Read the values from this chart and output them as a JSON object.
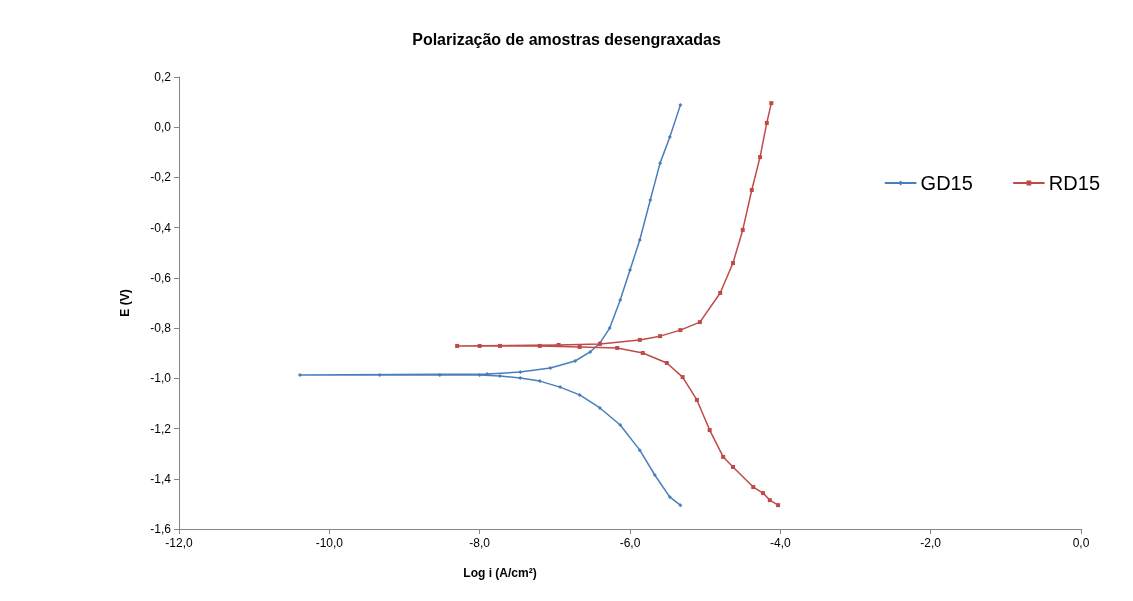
{
  "chart_data": {
    "type": "line",
    "title": "Polarização de amostras desengraxadas",
    "xlabel": "Log i (A/cm²)",
    "ylabel": "E (V)",
    "xlim": [
      -12,
      0
    ],
    "xticks": [
      {
        "value": -12,
        "label": "-12,0"
      },
      {
        "value": -10,
        "label": "-10,0"
      },
      {
        "value": -8,
        "label": "-8,0"
      },
      {
        "value": -6,
        "label": "-6,0"
      },
      {
        "value": -4,
        "label": "-4,0"
      },
      {
        "value": -2,
        "label": "-2,0"
      },
      {
        "value": 0,
        "label": "0,0"
      }
    ],
    "ylim": [
      -1.6,
      0.2
    ],
    "yticks": [
      {
        "value": -1.6,
        "label": "-1,6"
      },
      {
        "value": -1.4,
        "label": "-1,4"
      },
      {
        "value": -1.2,
        "label": "-1,2"
      },
      {
        "value": -1,
        "label": "-1,0"
      },
      {
        "value": -0.8,
        "label": "-0,8"
      },
      {
        "value": -0.6,
        "label": "-0,6"
      },
      {
        "value": -0.4,
        "label": "-0,4"
      },
      {
        "value": -0.2,
        "label": "-0,2"
      },
      {
        "value": 0,
        "label": "0,0"
      },
      {
        "value": 0.2,
        "label": "0,2"
      }
    ],
    "grid": false,
    "legend": "top right",
    "line_style": "solid",
    "series": [
      {
        "name": "GD15",
        "color": "#4a7ebb",
        "marker": "diamond",
        "x": [
          -5.33,
          -5.47,
          -5.67,
          -5.87,
          -6.13,
          -6.4,
          -6.67,
          -6.93,
          -7.2,
          -7.46,
          -7.73,
          -8.0,
          -8.53,
          -9.33,
          -10.39,
          -7.9,
          -7.46,
          -7.06,
          -6.73,
          -6.53,
          -6.4,
          -6.27,
          -6.13,
          -6.0,
          -5.87,
          -5.73,
          -5.6,
          -5.47,
          -5.33
        ],
        "values": [
          -1.505,
          -1.473,
          -1.385,
          -1.286,
          -1.186,
          -1.118,
          -1.066,
          -1.035,
          -1.011,
          -0.999,
          -0.991,
          -0.987,
          -0.987,
          -0.987,
          -0.987,
          -0.983,
          -0.975,
          -0.959,
          -0.931,
          -0.895,
          -0.859,
          -0.8,
          -0.688,
          -0.569,
          -0.449,
          -0.29,
          -0.143,
          -0.039,
          0.088
        ]
      },
      {
        "name": "RD15",
        "color": "#be4b48",
        "marker": "square",
        "x": [
          -4.03,
          -4.14,
          -4.23,
          -4.36,
          -4.63,
          -4.76,
          -4.94,
          -5.11,
          -5.3,
          -5.51,
          -5.83,
          -6.17,
          -6.67,
          -7.2,
          -7.73,
          -8.0,
          -8.3,
          -6.95,
          -6.4,
          -5.87,
          -5.6,
          -5.33,
          -5.07,
          -4.8,
          -4.63,
          -4.5,
          -4.38,
          -4.27,
          -4.18,
          -4.12
        ],
        "values": [
          -1.505,
          -1.485,
          -1.457,
          -1.433,
          -1.353,
          -1.313,
          -1.206,
          -1.086,
          -0.995,
          -0.939,
          -0.899,
          -0.879,
          -0.875,
          -0.871,
          -0.871,
          -0.871,
          -0.871,
          -0.867,
          -0.863,
          -0.847,
          -0.832,
          -0.808,
          -0.776,
          -0.66,
          -0.541,
          -0.409,
          -0.25,
          -0.119,
          0.017,
          0.096
        ]
      }
    ]
  }
}
